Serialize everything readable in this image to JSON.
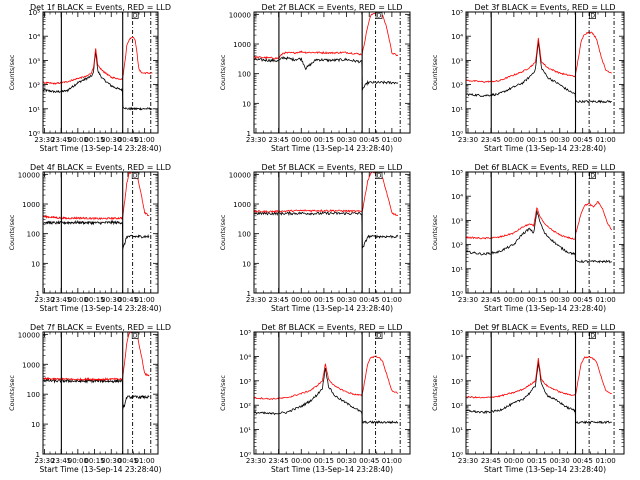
{
  "common": {
    "xlabel": "Start Time (13-Sep-14 23:28:40)",
    "ylabel": "Counts/sec",
    "x_tick_labels": [
      "23:30",
      "23:45",
      "00:00",
      "00:15",
      "00:30",
      "00:45",
      "01:00"
    ],
    "x_tick_minutes": [
      -60,
      -45,
      -30,
      -15,
      0,
      15,
      30
    ],
    "x_range_minutes": [
      -61.3,
      42
    ],
    "vlines_solid_minutes": [
      -44.8,
      10.3
    ],
    "vlines_dash_minutes": [
      19.2,
      35.5
    ],
    "marker_label": "D",
    "marker_minute": 21.5,
    "events_color": "#000000",
    "lld_color": "#ff0000"
  },
  "chart_data": [
    {
      "type": "line",
      "title": "Det 1f BLACK = Events, RED = LLD",
      "yscale": "log",
      "ylim": [
        1,
        100000
      ],
      "y_tick_labels": [
        "10⁰",
        "10¹",
        "10²",
        "10³",
        "10⁴",
        "10⁵"
      ],
      "y_tick_values": [
        1,
        10,
        100,
        1000,
        10000,
        100000
      ],
      "x": [
        -61,
        -50,
        -40,
        -30,
        -22,
        -18,
        -16,
        -14,
        -12,
        -8,
        0,
        5,
        10,
        10.5,
        14,
        16,
        18,
        20,
        21,
        22,
        25,
        28,
        31,
        33,
        35,
        37
      ],
      "series": [
        {
          "name": "Events",
          "values": [
            60,
            50,
            55,
            120,
            180,
            220,
            300,
            2600,
            350,
            180,
            90,
            70,
            60,
            12,
            10,
            10,
            10,
            10,
            10,
            10,
            10,
            10,
            10,
            10,
            10,
            10
          ]
        },
        {
          "name": "LLD",
          "values": [
            120,
            110,
            130,
            180,
            220,
            300,
            500,
            3000,
            600,
            380,
            200,
            180,
            170,
            200,
            4000,
            7000,
            9000,
            9000,
            8000,
            5000,
            400,
            300,
            300,
            300,
            300,
            300
          ]
        }
      ]
    },
    {
      "type": "line",
      "title": "Det 2f BLACK = Events, RED = LLD",
      "yscale": "log",
      "ylim": [
        1,
        12000
      ],
      "y_tick_labels": [
        "1",
        "10",
        "100",
        "1000",
        "10000"
      ],
      "y_tick_values": [
        1,
        10,
        100,
        1000,
        10000
      ],
      "x": [
        -61,
        -50,
        -45,
        -42,
        -35,
        -30,
        -27,
        -20,
        -10,
        0,
        5,
        10,
        10.5,
        14,
        16,
        18,
        21,
        24,
        27,
        30,
        34
      ],
      "series": [
        {
          "name": "Events",
          "values": [
            300,
            280,
            270,
            350,
            300,
            320,
            150,
            300,
            280,
            300,
            270,
            250,
            30,
            50,
            50,
            50,
            50,
            50,
            50,
            50,
            50
          ]
        },
        {
          "name": "LLD",
          "values": [
            360,
            340,
            330,
            500,
            500,
            550,
            520,
            520,
            500,
            520,
            480,
            450,
            500,
            4000,
            9000,
            11000,
            11000,
            9000,
            3000,
            500,
            400
          ]
        }
      ]
    },
    {
      "type": "line",
      "title": "Det 3f BLACK = Events, RED = LLD",
      "yscale": "log",
      "ylim": [
        1,
        100000
      ],
      "y_tick_labels": [
        "10⁰",
        "10¹",
        "10²",
        "10³",
        "10⁴",
        "10⁵"
      ],
      "y_tick_values": [
        1,
        10,
        100,
        1000,
        10000,
        100000
      ],
      "x": [
        -61,
        -50,
        -40,
        -30,
        -24,
        -20,
        -16,
        -14,
        -12,
        -8,
        0,
        5,
        10,
        10.5,
        14,
        16,
        19,
        21,
        24,
        27,
        30,
        34
      ],
      "series": [
        {
          "name": "Events",
          "values": [
            40,
            35,
            40,
            80,
            120,
            200,
            400,
            6000,
            500,
            200,
            100,
            60,
            40,
            20,
            20,
            20,
            20,
            20,
            20,
            20,
            20,
            20
          ]
        },
        {
          "name": "LLD",
          "values": [
            150,
            130,
            140,
            250,
            350,
            500,
            800,
            8000,
            900,
            500,
            300,
            250,
            220,
            300,
            6000,
            12000,
            15000,
            14000,
            8000,
            1500,
            400,
            300
          ]
        }
      ]
    },
    {
      "type": "line",
      "title": "Det 4f BLACK = Events, RED = LLD",
      "yscale": "log",
      "ylim": [
        1,
        12000
      ],
      "y_tick_labels": [
        "1",
        "10",
        "100",
        "1000",
        "10000"
      ],
      "y_tick_values": [
        1,
        10,
        100,
        1000,
        10000
      ],
      "x": [
        -61,
        -50,
        -40,
        -30,
        -20,
        -10,
        0,
        5,
        10,
        10.5,
        14,
        16,
        18,
        21,
        24,
        27,
        30,
        34
      ],
      "series": [
        {
          "name": "Events",
          "values": [
            240,
            230,
            235,
            240,
            235,
            230,
            240,
            235,
            240,
            30,
            80,
            80,
            80,
            80,
            80,
            80,
            80,
            80
          ]
        },
        {
          "name": "LLD",
          "values": [
            380,
            350,
            330,
            340,
            330,
            320,
            330,
            330,
            340,
            400,
            5000,
            11000,
            12000,
            11000,
            7000,
            2000,
            500,
            400
          ]
        }
      ]
    },
    {
      "type": "line",
      "title": "Det 5f BLACK = Events, RED = LLD",
      "yscale": "log",
      "ylim": [
        1,
        12000
      ],
      "y_tick_labels": [
        "1",
        "10",
        "100",
        "1000",
        "10000"
      ],
      "y_tick_values": [
        1,
        10,
        100,
        1000,
        10000
      ],
      "x": [
        -61,
        -50,
        -40,
        -30,
        -20,
        -10,
        0,
        5,
        10,
        10.5,
        14,
        16,
        18,
        21,
        24,
        27,
        30,
        34
      ],
      "series": [
        {
          "name": "Events",
          "values": [
            480,
            480,
            480,
            490,
            480,
            485,
            480,
            480,
            480,
            30,
            80,
            80,
            80,
            80,
            80,
            80,
            80,
            80
          ]
        },
        {
          "name": "LLD",
          "values": [
            560,
            560,
            580,
            600,
            600,
            600,
            580,
            570,
            560,
            600,
            6000,
            11000,
            12000,
            11000,
            7000,
            2000,
            500,
            400
          ]
        }
      ]
    },
    {
      "type": "line",
      "title": "Det 6f BLACK = Events, RED = LLD",
      "yscale": "log",
      "ylim": [
        1,
        100000
      ],
      "y_tick_labels": [
        "10⁰",
        "10¹",
        "10²",
        "10³",
        "10⁴",
        "10⁵"
      ],
      "y_tick_values": [
        1,
        10,
        100,
        1000,
        10000,
        100000
      ],
      "x": [
        -61,
        -50,
        -40,
        -30,
        -25,
        -20,
        -17,
        -15,
        -13,
        -10,
        -5,
        0,
        5,
        10,
        10.5,
        14,
        16,
        19,
        22,
        25,
        28,
        31,
        34
      ],
      "series": [
        {
          "name": "Events",
          "values": [
            50,
            40,
            50,
            100,
            250,
            450,
            300,
            2500,
            900,
            300,
            150,
            80,
            50,
            40,
            20,
            20,
            20,
            20,
            20,
            20,
            20,
            20,
            20
          ]
        },
        {
          "name": "LLD",
          "values": [
            200,
            180,
            200,
            300,
            500,
            700,
            600,
            3500,
            1500,
            700,
            400,
            250,
            200,
            160,
            300,
            2000,
            4000,
            5000,
            3500,
            6000,
            3000,
            800,
            400
          ]
        }
      ]
    },
    {
      "type": "line",
      "title": "Det 7f BLACK = Events, RED = LLD",
      "yscale": "log",
      "ylim": [
        1,
        12000
      ],
      "y_tick_labels": [
        "1",
        "10",
        "100",
        "1000",
        "10000"
      ],
      "y_tick_values": [
        1,
        10,
        100,
        1000,
        10000
      ],
      "x": [
        -61,
        -50,
        -40,
        -30,
        -20,
        -10,
        0,
        5,
        10,
        10.5,
        14,
        16,
        18,
        21,
        24,
        27,
        30,
        34
      ],
      "series": [
        {
          "name": "Events",
          "values": [
            290,
            275,
            280,
            270,
            275,
            280,
            270,
            275,
            280,
            30,
            80,
            80,
            80,
            80,
            80,
            80,
            80,
            80
          ]
        },
        {
          "name": "LLD",
          "values": [
            330,
            320,
            320,
            310,
            320,
            310,
            320,
            315,
            320,
            400,
            5000,
            11000,
            12000,
            11000,
            7000,
            2000,
            500,
            400
          ]
        }
      ]
    },
    {
      "type": "line",
      "title": "Det 8f BLACK = Events, RED = LLD",
      "yscale": "log",
      "ylim": [
        1,
        100000
      ],
      "y_tick_labels": [
        "10⁰",
        "10¹",
        "10²",
        "10³",
        "10⁴",
        "10⁵"
      ],
      "y_tick_values": [
        1,
        10,
        100,
        1000,
        10000,
        100000
      ],
      "x": [
        -61,
        -50,
        -40,
        -30,
        -24,
        -20,
        -16,
        -14,
        -12,
        -8,
        0,
        5,
        10,
        10.5,
        14,
        16,
        19,
        21,
        24,
        27,
        30,
        34
      ],
      "series": [
        {
          "name": "Events",
          "values": [
            50,
            45,
            50,
            90,
            150,
            250,
            500,
            3500,
            600,
            250,
            120,
            80,
            50,
            20,
            20,
            20,
            20,
            20,
            20,
            20,
            20,
            20
          ]
        },
        {
          "name": "LLD",
          "values": [
            200,
            180,
            200,
            300,
            400,
            600,
            1000,
            5000,
            1200,
            600,
            350,
            280,
            250,
            300,
            5000,
            9000,
            10000,
            9500,
            6000,
            1500,
            400,
            300
          ]
        }
      ]
    },
    {
      "type": "line",
      "title": "Det 9f BLACK = Events, RED = LLD",
      "yscale": "log",
      "ylim": [
        1,
        100000
      ],
      "y_tick_labels": [
        "10⁰",
        "10¹",
        "10²",
        "10³",
        "10⁴",
        "10⁵"
      ],
      "y_tick_values": [
        1,
        10,
        100,
        1000,
        10000,
        100000
      ],
      "x": [
        -61,
        -50,
        -40,
        -30,
        -24,
        -20,
        -16,
        -14,
        -12,
        -8,
        0,
        5,
        10,
        10.5,
        14,
        16,
        19,
        21,
        24,
        27,
        30,
        34
      ],
      "series": [
        {
          "name": "Events",
          "values": [
            60,
            50,
            60,
            120,
            180,
            300,
            600,
            6000,
            700,
            250,
            130,
            80,
            60,
            20,
            20,
            20,
            20,
            20,
            20,
            20,
            20,
            20
          ]
        },
        {
          "name": "LLD",
          "values": [
            220,
            200,
            230,
            330,
            450,
            650,
            1000,
            8000,
            1100,
            600,
            350,
            280,
            260,
            300,
            5000,
            9000,
            9500,
            9000,
            6000,
            1500,
            400,
            300
          ]
        }
      ]
    }
  ]
}
